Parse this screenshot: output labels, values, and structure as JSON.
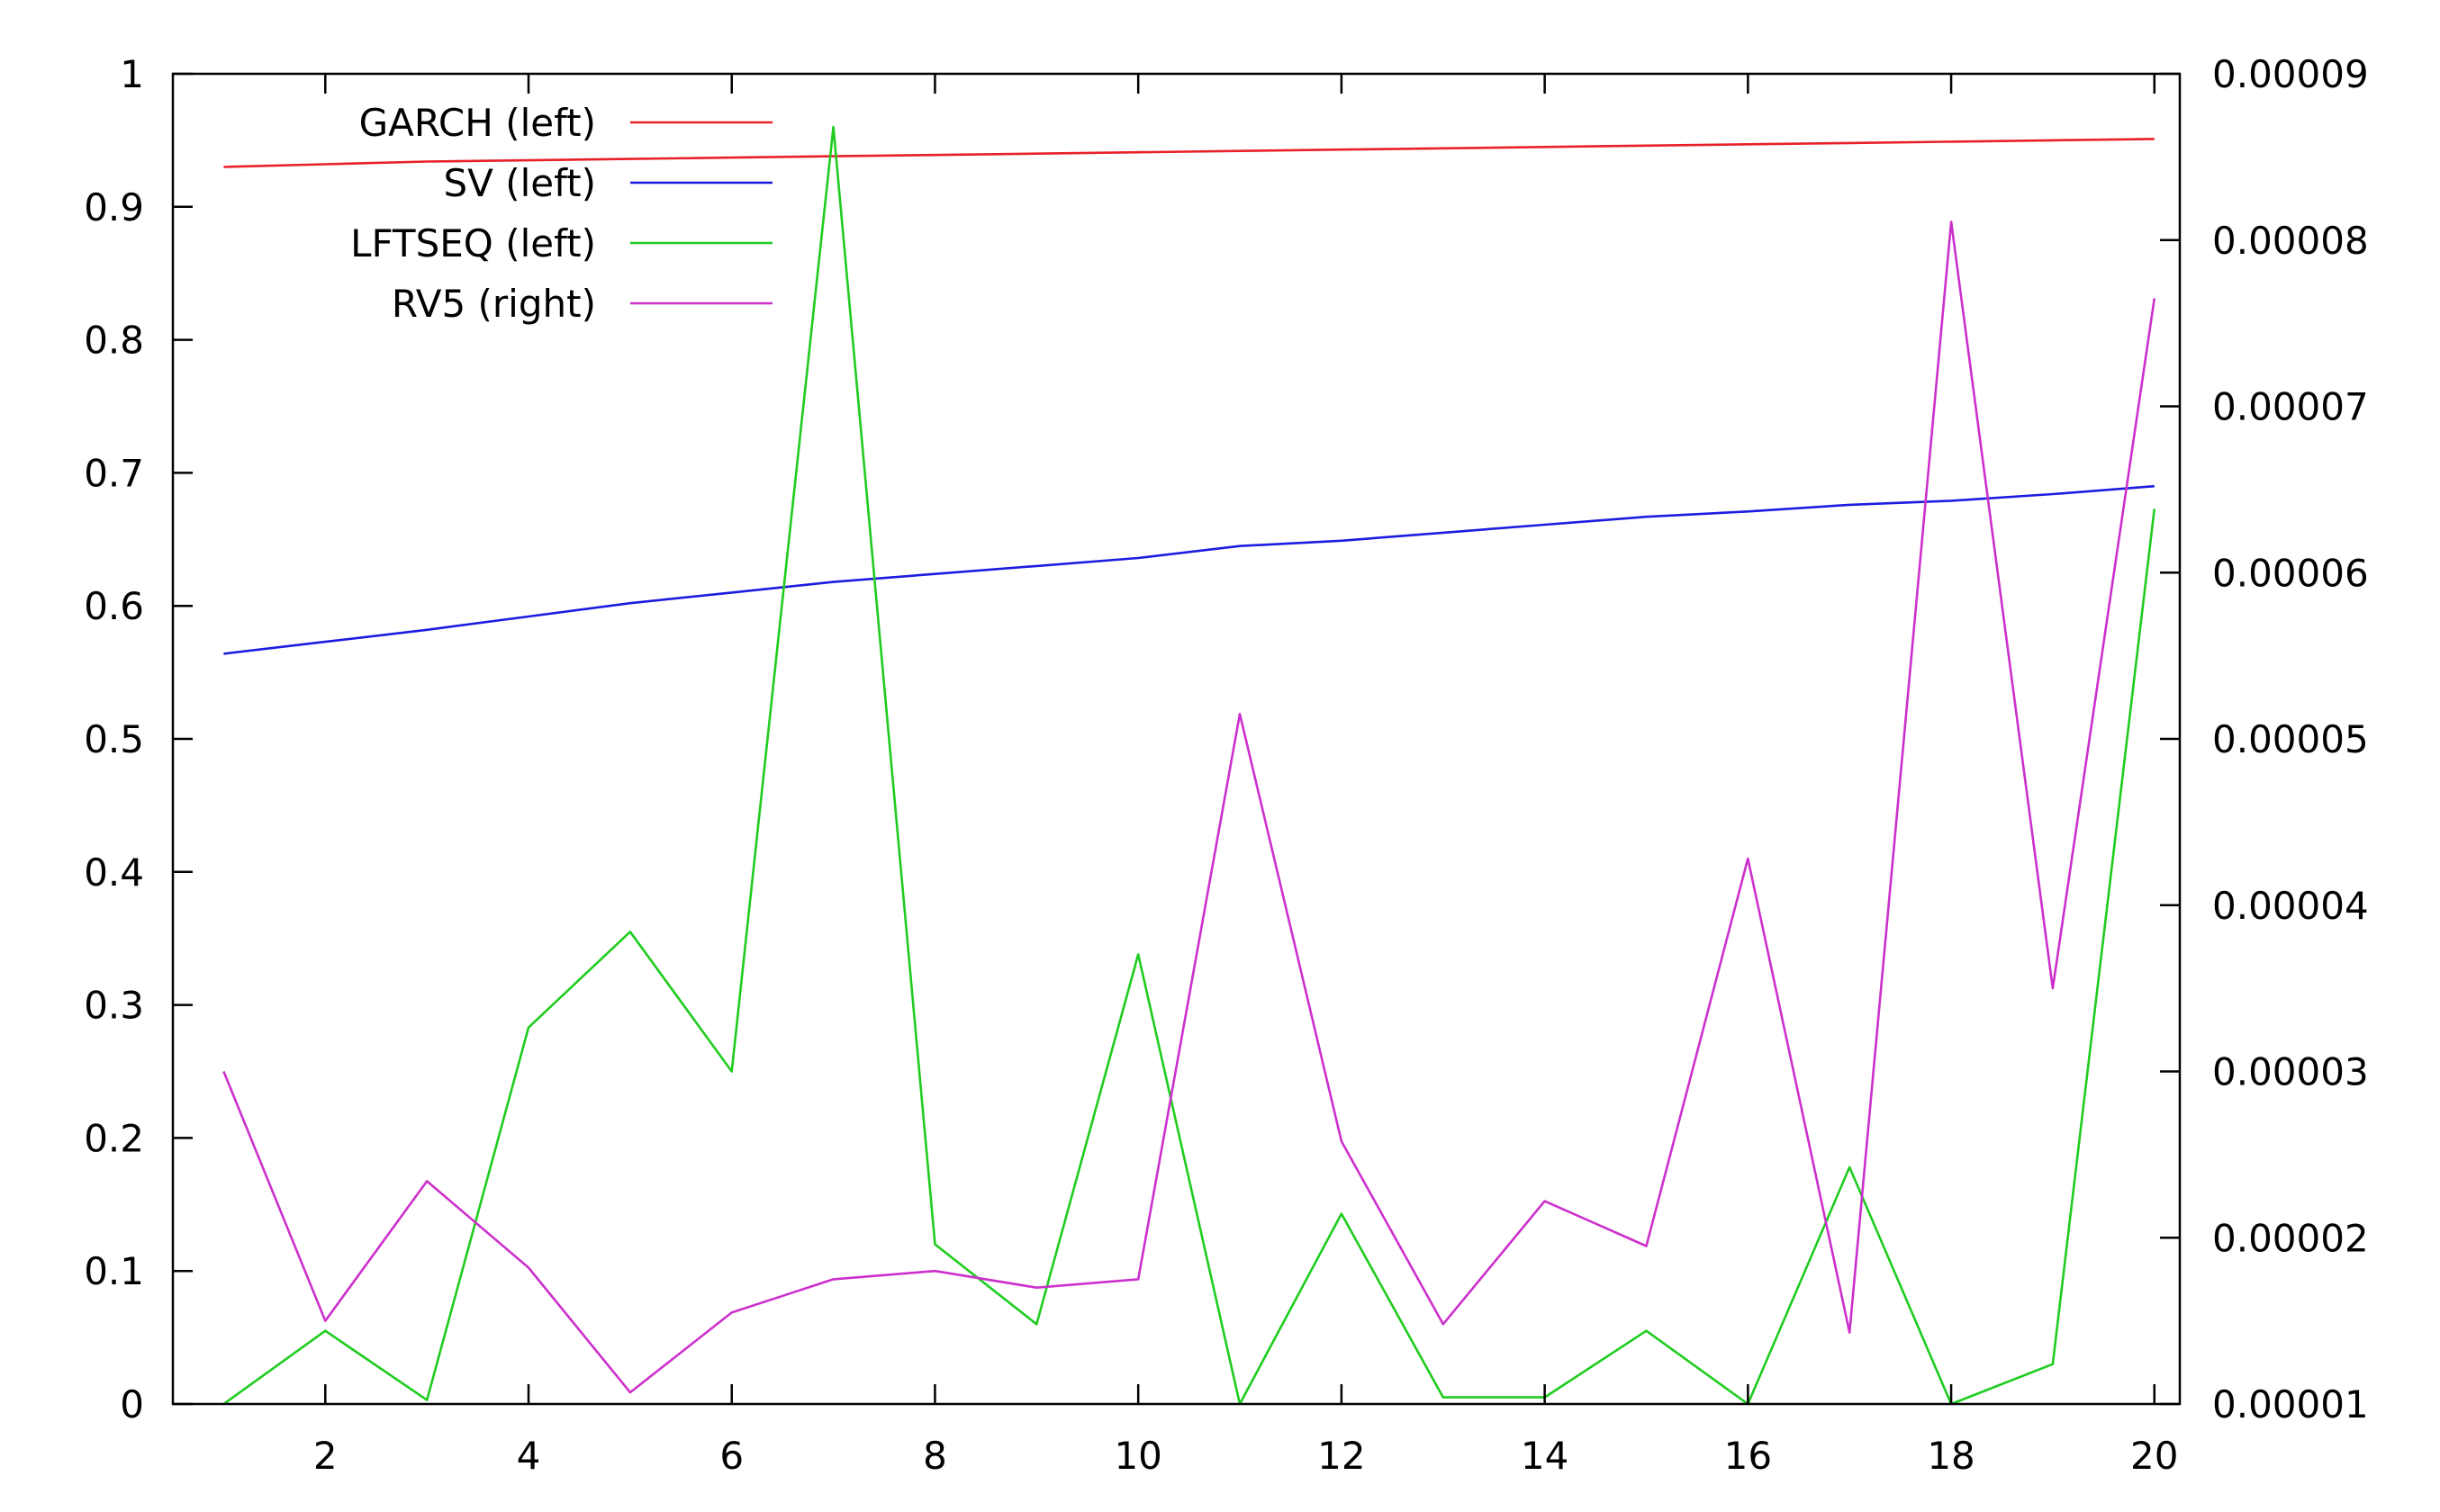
{
  "chart_data": {
    "type": "line",
    "title": "",
    "xlabel": "",
    "ylabel": "",
    "y2label": "",
    "grid": false,
    "legend_position": "top-left",
    "xlim": [
      0.5,
      20.25
    ],
    "ylim": [
      0,
      1
    ],
    "y2lim": [
      1e-05,
      9e-05
    ],
    "x_ticks": [
      2,
      4,
      6,
      8,
      10,
      12,
      14,
      16,
      18,
      20
    ],
    "y_ticks": [
      "0",
      "0.1",
      "0.2",
      "0.3",
      "0.4",
      "0.5",
      "0.6",
      "0.7",
      "0.8",
      "0.9",
      "1"
    ],
    "y2_ticks": [
      "0.00001",
      "0.00002",
      "0.00003",
      "0.00004",
      "0.00005",
      "0.00006",
      "0.00007",
      "0.00008",
      "0.00009"
    ],
    "x": [
      1,
      2,
      3,
      4,
      5,
      6,
      7,
      8,
      9,
      10,
      11,
      12,
      13,
      14,
      15,
      16,
      17,
      18,
      19,
      20
    ],
    "series": [
      {
        "name": "GARCH (left)",
        "axis": "left",
        "color": "#e8202a",
        "values": [
          0.93,
          0.932,
          0.934,
          0.935,
          0.936,
          0.937,
          0.938,
          0.939,
          0.94,
          0.941,
          0.942,
          0.943,
          0.944,
          0.945,
          0.946,
          0.947,
          0.948,
          0.949,
          0.95,
          0.951
        ]
      },
      {
        "name": "SV (left)",
        "axis": "left",
        "color": "#1c1ce0",
        "values": [
          0.564,
          0.573,
          0.582,
          0.592,
          0.602,
          0.61,
          0.618,
          0.624,
          0.63,
          0.636,
          0.645,
          0.649,
          0.655,
          0.661,
          0.667,
          0.671,
          0.676,
          0.679,
          0.684,
          0.69
        ]
      },
      {
        "name": "LFTSEQ (left)",
        "axis": "left",
        "color": "#1fcc1f",
        "values": [
          0.0,
          0.055,
          0.003,
          0.283,
          0.355,
          0.25,
          0.96,
          0.12,
          0.06,
          0.338,
          0.0,
          0.143,
          0.005,
          0.005,
          0.055,
          0.0,
          0.178,
          0.0,
          0.03,
          0.673
        ]
      },
      {
        "name": "RV5 (right)",
        "axis": "right",
        "color": "#cc30cc",
        "values": [
          3e-05,
          1.5e-05,
          2.34e-05,
          1.82e-05,
          1.07e-05,
          1.55e-05,
          1.75e-05,
          1.8e-05,
          1.7e-05,
          1.75e-05,
          5.15e-05,
          2.58e-05,
          1.48e-05,
          2.22e-05,
          1.95e-05,
          4.28e-05,
          1.43e-05,
          8.11e-05,
          3.5e-05,
          7.65e-05
        ]
      }
    ]
  }
}
